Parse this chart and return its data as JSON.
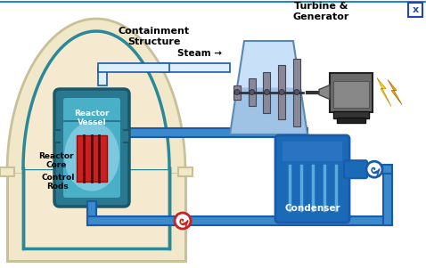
{
  "bg_color": "#ffffff",
  "outer_wall_color": "#f0e8c8",
  "outer_wall_border": "#c8c098",
  "outer_wall_border2": "#a8a070",
  "inner_dome_fill": "#f5ead0",
  "inner_dome_border": "#2a8898",
  "reactor_vessel_outer": "#2a7890",
  "reactor_vessel_inner": "#4ab0c8",
  "reactor_glow": "#80c8e8",
  "reactor_core_red": "#cc2020",
  "reactor_core_dark": "#881010",
  "reactor_rod_lines": "#550808",
  "pipe_blue": "#1a5aaa",
  "pipe_fill": "#3a8acc",
  "steam_pipe_fill": "#ddeeff",
  "turbine_fill_top": "#c8e0f8",
  "turbine_fill_bot": "#6098c8",
  "turbine_blade": "#888898",
  "turbine_blade_edge": "#444455",
  "generator_fill": "#606060",
  "generator_dark": "#333333",
  "generator_light": "#888888",
  "generator_cone": "#888888",
  "lightning1": "#ffdd00",
  "lightning2": "#ffaa00",
  "condenser_fill": "#1a6ab8",
  "condenser_top": "#4a8acc",
  "condenser_lines": "#5aaae0",
  "pump_red": "#cc2020",
  "pump_blue": "#1a5aaa",
  "containment_label": "Containment\nStructure",
  "steam_label": "Steam →",
  "turbine_label": "Turbine &\nGenerator",
  "reactor_vessel_label": "Reactor\nVessel",
  "reactor_core_label": "Reactor\nCore",
  "control_rods_label": "Control\nRods",
  "condenser_label": "Condenser",
  "figsize": [
    4.78,
    3.01
  ],
  "dpi": 100
}
